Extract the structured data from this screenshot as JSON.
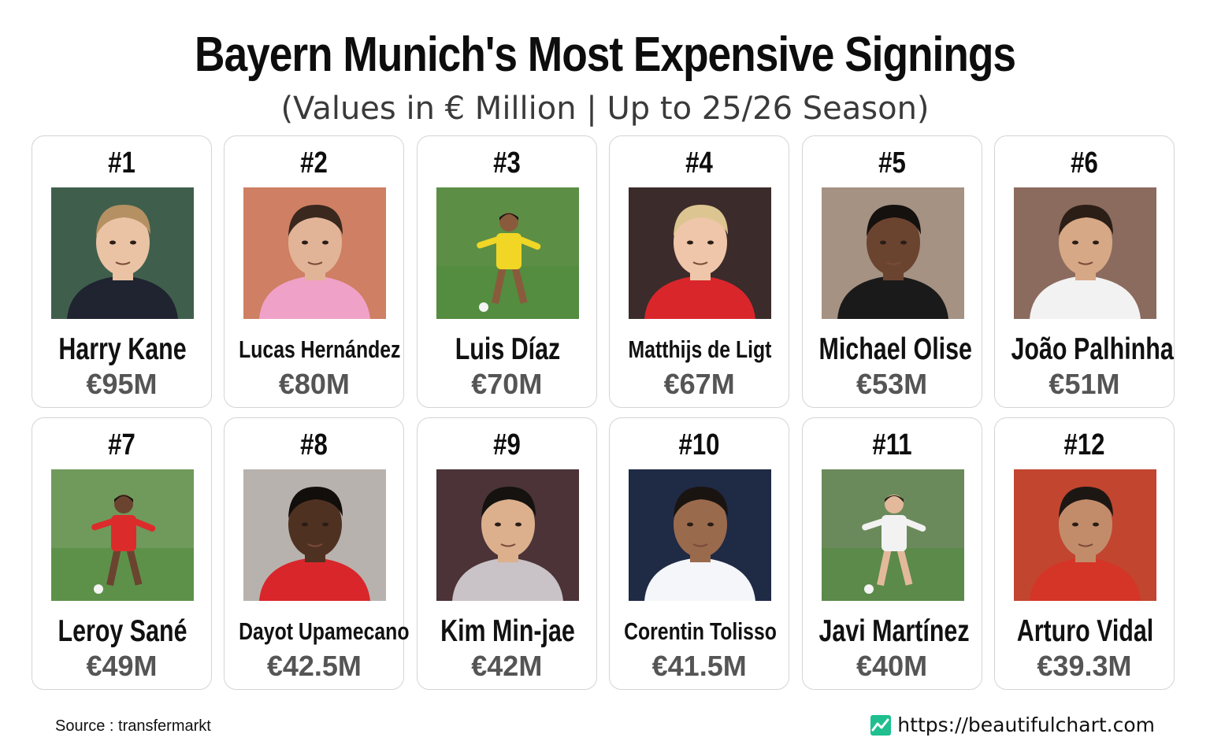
{
  "title": "Bayern Munich's Most Expensive Signings",
  "subtitle": "(Values in € Million | Up to 25/26 Season)",
  "footer": {
    "source": "Source : transfermarkt",
    "brand_url": "https://beautifulchart.com",
    "brand_icon": "chart-line-icon",
    "brand_color": "#1fbf8f"
  },
  "players": [
    {
      "rank": "#1",
      "name": "Harry Kane",
      "value_label": "€95M",
      "name_size": "normal",
      "photo": {
        "bg": "#3f5f4c",
        "skin": "#e9c3a4",
        "hair": "#b59062",
        "shirt": "#1f2430",
        "pose": "portrait"
      }
    },
    {
      "rank": "#2",
      "name": "Lucas Hernández",
      "value_label": "€80M",
      "name_size": "small",
      "photo": {
        "bg": "#cf7f63",
        "skin": "#e2b497",
        "hair": "#3a281e",
        "shirt": "#f0a1c8",
        "pose": "portrait"
      }
    },
    {
      "rank": "#3",
      "name": "Luis Díaz",
      "value_label": "€70M",
      "name_size": "normal",
      "photo": {
        "bg": "#5c8f45",
        "skin": "#8a5a3c",
        "hair": "#1b1512",
        "shirt": "#f1d625",
        "pose": "action"
      }
    },
    {
      "rank": "#4",
      "name": "Matthijs de Ligt",
      "value_label": "€67M",
      "name_size": "small",
      "photo": {
        "bg": "#3b2b2b",
        "skin": "#efc6a9",
        "hair": "#dcc590",
        "shirt": "#d9262b",
        "pose": "portrait"
      }
    },
    {
      "rank": "#5",
      "name": "Michael Olise",
      "value_label": "€53M",
      "name_size": "normal",
      "photo": {
        "bg": "#a59283",
        "skin": "#6b4430",
        "hair": "#15110e",
        "shirt": "#1a1a1a",
        "pose": "portrait"
      }
    },
    {
      "rank": "#6",
      "name": "João Palhinha",
      "value_label": "€51M",
      "name_size": "normal",
      "photo": {
        "bg": "#8b6b5e",
        "skin": "#d7a886",
        "hair": "#2b1e16",
        "shirt": "#f2f2f2",
        "pose": "portrait"
      }
    },
    {
      "rank": "#7",
      "name": "Leroy Sané",
      "value_label": "€49M",
      "name_size": "normal",
      "photo": {
        "bg": "#6f9a5c",
        "skin": "#6b4430",
        "hair": "#1a1410",
        "shirt": "#dc2b2b",
        "pose": "action"
      }
    },
    {
      "rank": "#8",
      "name": "Dayot Upamecano",
      "value_label": "€42.5M",
      "name_size": "small",
      "photo": {
        "bg": "#b7b2ad",
        "skin": "#4f3122",
        "hair": "#120e0b",
        "shirt": "#d9262b",
        "pose": "portrait"
      }
    },
    {
      "rank": "#9",
      "name": "Kim Min-jae",
      "value_label": "€42M",
      "name_size": "normal",
      "photo": {
        "bg": "#4b3338",
        "skin": "#dcb08d",
        "hair": "#151210",
        "shirt": "#c9c2c6",
        "pose": "portrait"
      }
    },
    {
      "rank": "#10",
      "name": "Corentin Tolisso",
      "value_label": "€41.5M",
      "name_size": "small",
      "photo": {
        "bg": "#1f2a45",
        "skin": "#9a6a4d",
        "hair": "#1a1410",
        "shirt": "#f4f6fa",
        "pose": "portrait"
      }
    },
    {
      "rank": "#11",
      "name": "Javi Martínez",
      "value_label": "€40M",
      "name_size": "normal",
      "photo": {
        "bg": "#6b8a5b",
        "skin": "#e3b99b",
        "hair": "#2c211a",
        "shirt": "#f2f2f2",
        "pose": "action"
      }
    },
    {
      "rank": "#12",
      "name": "Arturo Vidal",
      "value_label": "€39.3M",
      "name_size": "normal",
      "photo": {
        "bg": "#c2452f",
        "skin": "#c28c6a",
        "hair": "#1d1714",
        "shirt": "#d43526",
        "pose": "portrait"
      }
    }
  ]
}
